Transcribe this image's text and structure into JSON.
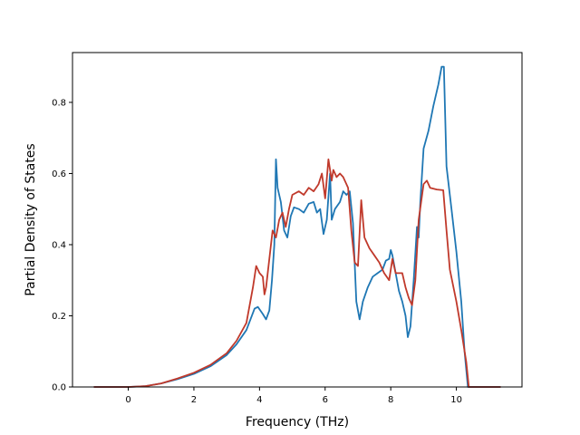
{
  "chart_data": {
    "type": "line",
    "title": "",
    "xlabel": "Frequency (THz)",
    "ylabel": "Partial Density of States",
    "xlim": [
      -1.7,
      12.0
    ],
    "ylim": [
      0.0,
      0.94
    ],
    "xticks": [
      0,
      2,
      4,
      6,
      8,
      10
    ],
    "xtick_labels": [
      "0",
      "2",
      "4",
      "6",
      "8",
      "10"
    ],
    "yticks": [
      0.0,
      0.2,
      0.4,
      0.6,
      0.8
    ],
    "ytick_labels": [
      "0.0",
      "0.2",
      "0.4",
      "0.6",
      "0.8"
    ],
    "grid": false,
    "legend": "none",
    "series": [
      {
        "color": "#1f77b4",
        "points": [
          [
            -1.05,
            0.0
          ],
          [
            0.0,
            0.0
          ],
          [
            0.5,
            0.002
          ],
          [
            1.0,
            0.01
          ],
          [
            1.5,
            0.022
          ],
          [
            2.0,
            0.037
          ],
          [
            2.5,
            0.058
          ],
          [
            3.0,
            0.09
          ],
          [
            3.3,
            0.12
          ],
          [
            3.6,
            0.16
          ],
          [
            3.85,
            0.22
          ],
          [
            3.95,
            0.225
          ],
          [
            4.1,
            0.205
          ],
          [
            4.2,
            0.19
          ],
          [
            4.3,
            0.215
          ],
          [
            4.38,
            0.3
          ],
          [
            4.45,
            0.4
          ],
          [
            4.5,
            0.64
          ],
          [
            4.55,
            0.56
          ],
          [
            4.65,
            0.52
          ],
          [
            4.75,
            0.44
          ],
          [
            4.85,
            0.42
          ],
          [
            4.95,
            0.48
          ],
          [
            5.05,
            0.505
          ],
          [
            5.2,
            0.5
          ],
          [
            5.35,
            0.49
          ],
          [
            5.5,
            0.515
          ],
          [
            5.65,
            0.52
          ],
          [
            5.75,
            0.49
          ],
          [
            5.85,
            0.5
          ],
          [
            5.95,
            0.43
          ],
          [
            6.05,
            0.47
          ],
          [
            6.15,
            0.6
          ],
          [
            6.2,
            0.47
          ],
          [
            6.3,
            0.5
          ],
          [
            6.45,
            0.52
          ],
          [
            6.55,
            0.55
          ],
          [
            6.65,
            0.54
          ],
          [
            6.75,
            0.55
          ],
          [
            6.85,
            0.46
          ],
          [
            6.95,
            0.24
          ],
          [
            7.05,
            0.19
          ],
          [
            7.15,
            0.24
          ],
          [
            7.3,
            0.28
          ],
          [
            7.45,
            0.31
          ],
          [
            7.6,
            0.32
          ],
          [
            7.75,
            0.33
          ],
          [
            7.85,
            0.355
          ],
          [
            7.95,
            0.36
          ],
          [
            8.0,
            0.385
          ],
          [
            8.05,
            0.37
          ],
          [
            8.15,
            0.32
          ],
          [
            8.25,
            0.27
          ],
          [
            8.35,
            0.24
          ],
          [
            8.45,
            0.2
          ],
          [
            8.52,
            0.14
          ],
          [
            8.6,
            0.17
          ],
          [
            8.7,
            0.3
          ],
          [
            8.8,
            0.45
          ],
          [
            8.85,
            0.42
          ],
          [
            8.9,
            0.52
          ],
          [
            9.0,
            0.67
          ],
          [
            9.15,
            0.72
          ],
          [
            9.3,
            0.79
          ],
          [
            9.45,
            0.85
          ],
          [
            9.55,
            0.9
          ],
          [
            9.62,
            0.9
          ],
          [
            9.7,
            0.62
          ],
          [
            9.85,
            0.5
          ],
          [
            10.0,
            0.38
          ],
          [
            10.15,
            0.24
          ],
          [
            10.25,
            0.1
          ],
          [
            10.35,
            0.0
          ],
          [
            11.35,
            0.0
          ]
        ]
      },
      {
        "color": "#c0392b",
        "points": [
          [
            -1.05,
            0.0
          ],
          [
            0.0,
            0.0
          ],
          [
            0.5,
            0.002
          ],
          [
            1.0,
            0.01
          ],
          [
            1.5,
            0.024
          ],
          [
            2.0,
            0.04
          ],
          [
            2.5,
            0.062
          ],
          [
            3.0,
            0.095
          ],
          [
            3.3,
            0.13
          ],
          [
            3.6,
            0.18
          ],
          [
            3.8,
            0.28
          ],
          [
            3.9,
            0.34
          ],
          [
            4.0,
            0.32
          ],
          [
            4.1,
            0.31
          ],
          [
            4.15,
            0.26
          ],
          [
            4.2,
            0.28
          ],
          [
            4.3,
            0.36
          ],
          [
            4.4,
            0.44
          ],
          [
            4.5,
            0.42
          ],
          [
            4.6,
            0.47
          ],
          [
            4.7,
            0.49
          ],
          [
            4.8,
            0.45
          ],
          [
            4.9,
            0.5
          ],
          [
            5.0,
            0.54
          ],
          [
            5.2,
            0.55
          ],
          [
            5.35,
            0.54
          ],
          [
            5.5,
            0.56
          ],
          [
            5.65,
            0.55
          ],
          [
            5.8,
            0.57
          ],
          [
            5.9,
            0.6
          ],
          [
            6.0,
            0.53
          ],
          [
            6.1,
            0.64
          ],
          [
            6.2,
            0.58
          ],
          [
            6.25,
            0.61
          ],
          [
            6.35,
            0.59
          ],
          [
            6.45,
            0.6
          ],
          [
            6.55,
            0.59
          ],
          [
            6.7,
            0.56
          ],
          [
            6.8,
            0.44
          ],
          [
            6.9,
            0.35
          ],
          [
            7.0,
            0.34
          ],
          [
            7.1,
            0.525
          ],
          [
            7.2,
            0.42
          ],
          [
            7.35,
            0.39
          ],
          [
            7.5,
            0.37
          ],
          [
            7.65,
            0.35
          ],
          [
            7.8,
            0.32
          ],
          [
            7.95,
            0.3
          ],
          [
            8.05,
            0.36
          ],
          [
            8.15,
            0.32
          ],
          [
            8.25,
            0.32
          ],
          [
            8.35,
            0.32
          ],
          [
            8.45,
            0.28
          ],
          [
            8.55,
            0.25
          ],
          [
            8.65,
            0.23
          ],
          [
            8.75,
            0.3
          ],
          [
            8.85,
            0.47
          ],
          [
            9.0,
            0.57
          ],
          [
            9.1,
            0.58
          ],
          [
            9.2,
            0.56
          ],
          [
            9.4,
            0.555
          ],
          [
            9.6,
            0.553
          ],
          [
            9.7,
            0.44
          ],
          [
            9.8,
            0.33
          ],
          [
            10.0,
            0.24
          ],
          [
            10.15,
            0.16
          ],
          [
            10.3,
            0.07
          ],
          [
            10.38,
            0.0
          ],
          [
            11.35,
            0.0
          ]
        ]
      }
    ]
  }
}
